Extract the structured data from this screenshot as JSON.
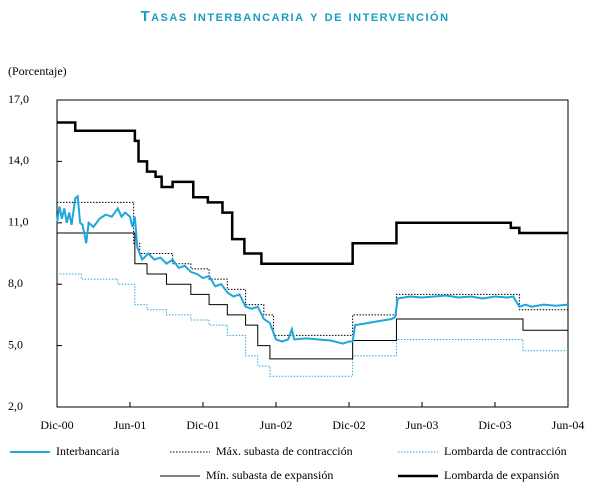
{
  "chart_data": {
    "type": "line",
    "title": "Tasas interbancaria y de intervención",
    "subtitle": "(Porcentaje)",
    "xlim": [
      0,
      42
    ],
    "xticks": [
      {
        "value": 0,
        "label": "Dic-00"
      },
      {
        "value": 6,
        "label": "Jun-01"
      },
      {
        "value": 12,
        "label": "Dic-01"
      },
      {
        "value": 18,
        "label": "Jun-02"
      },
      {
        "value": 24,
        "label": "Dic-02"
      },
      {
        "value": 30,
        "label": "Jun-03"
      },
      {
        "value": 36,
        "label": "Dic-03"
      },
      {
        "value": 42,
        "label": "Jun-04"
      }
    ],
    "ylim": [
      2,
      17
    ],
    "yticks": [
      {
        "value": 2,
        "label": "2,0"
      },
      {
        "value": 5,
        "label": "5,0"
      },
      {
        "value": 8,
        "label": "8,0"
      },
      {
        "value": 11,
        "label": "11,0"
      },
      {
        "value": 14,
        "label": "14,0"
      },
      {
        "value": 17,
        "label": "17,0"
      }
    ],
    "series": [
      {
        "name": "Lombarda de contracción",
        "color": "#29a9e0",
        "line_style": "dotted",
        "line_width": 1,
        "x": [
          0,
          2,
          2,
          5,
          5,
          6.4,
          6.4,
          7.4,
          7.4,
          9,
          9,
          11,
          11,
          12.5,
          12.5,
          14,
          14,
          15.5,
          15.5,
          16.5,
          16.5,
          17.5,
          17.5,
          24.3,
          24.3,
          27.9,
          27.9,
          38.3,
          38.3,
          42
        ],
        "values": [
          8.5,
          8.5,
          8.25,
          8.25,
          8.0,
          8.0,
          7.0,
          7.0,
          6.75,
          6.75,
          6.5,
          6.5,
          6.25,
          6.25,
          6.0,
          6.0,
          5.5,
          5.5,
          4.5,
          4.5,
          4.0,
          4.0,
          3.5,
          3.5,
          4.5,
          4.5,
          5.3,
          5.3,
          4.75,
          4.75
        ]
      },
      {
        "name": "Mín. subasta de expansión",
        "color": "#000000",
        "line_style": "solid",
        "line_width": 1,
        "x": [
          0,
          6.4,
          6.4,
          7.4,
          7.4,
          9,
          9,
          11,
          11,
          12.5,
          12.5,
          14,
          14,
          15.5,
          15.5,
          16.5,
          16.5,
          17.5,
          17.5,
          24.3,
          24.3,
          27.9,
          27.9,
          38.3,
          38.3,
          42
        ],
        "values": [
          10.5,
          10.5,
          9.0,
          9.0,
          8.5,
          8.5,
          8.0,
          8.0,
          7.5,
          7.5,
          7.0,
          7.0,
          6.5,
          6.5,
          6.0,
          6.0,
          5.0,
          5.0,
          4.35,
          4.35,
          5.25,
          5.25,
          6.3,
          6.3,
          5.75,
          5.75
        ]
      },
      {
        "name": "Máx. subasta de contracción",
        "color": "#000000",
        "line_style": "dotted",
        "line_width": 1,
        "x": [
          0,
          6.3,
          6.3,
          6.8,
          6.8,
          9.5,
          9.5,
          11,
          11,
          12.5,
          12.5,
          14,
          14,
          15.5,
          15.5,
          17,
          17,
          17.8,
          17.8,
          24.3,
          24.3,
          27.9,
          27.9,
          38,
          38,
          42
        ],
        "values": [
          12.0,
          12.0,
          10.0,
          10.0,
          9.5,
          9.5,
          9.0,
          9.0,
          8.75,
          8.75,
          8.25,
          8.25,
          7.75,
          7.75,
          7.0,
          7.0,
          6.5,
          6.5,
          5.5,
          5.5,
          6.5,
          6.5,
          7.5,
          7.5,
          6.75,
          6.75
        ]
      },
      {
        "name": "Lombarda de expansión",
        "color": "#000000",
        "line_style": "solid",
        "line_width": 2.5,
        "x": [
          0,
          1.5,
          1.5,
          6.4,
          6.4,
          6.7,
          6.7,
          7.4,
          7.4,
          8.1,
          8.1,
          8.6,
          8.6,
          9.5,
          9.5,
          11.2,
          11.2,
          12.4,
          12.4,
          13.6,
          13.6,
          14.4,
          14.4,
          15.4,
          15.4,
          16.8,
          16.8,
          24.3,
          24.3,
          27.9,
          27.9,
          37.3,
          37.3,
          38,
          38,
          42
        ],
        "values": [
          15.9,
          15.9,
          15.5,
          15.5,
          15.0,
          15.0,
          14.0,
          14.0,
          13.5,
          13.5,
          13.25,
          13.25,
          12.75,
          12.75,
          13.0,
          13.0,
          12.25,
          12.25,
          12.0,
          12.0,
          11.5,
          11.5,
          10.2,
          10.2,
          9.5,
          9.5,
          9.0,
          9.0,
          10.0,
          10.0,
          11.0,
          11.0,
          10.75,
          10.75,
          10.5,
          10.5
        ]
      },
      {
        "name": "Interbancaria",
        "color": "#1ea7dc",
        "line_style": "solid",
        "line_width": 2,
        "x": [
          0,
          0.2,
          0.4,
          0.6,
          0.8,
          1.0,
          1.2,
          1.5,
          1.7,
          1.9,
          2.1,
          2.4,
          2.6,
          3.0,
          3.5,
          4.0,
          4.5,
          5.0,
          5.3,
          5.6,
          6.0,
          6.2,
          6.4,
          6.6,
          6.8,
          7.0,
          7.5,
          8.0,
          8.5,
          9.0,
          9.5,
          10.0,
          10.5,
          11.0,
          11.5,
          12.0,
          12.5,
          13.0,
          13.5,
          14.0,
          14.5,
          15.0,
          15.5,
          16.0,
          16.5,
          17.0,
          17.5,
          18.0,
          18.5,
          19.0,
          19.3,
          19.5,
          20.5,
          21.5,
          22.5,
          23.5,
          24.0,
          24.3,
          24.5,
          25.5,
          26.5,
          27.5,
          27.8,
          28.0,
          29,
          30,
          31,
          32,
          33,
          34,
          35,
          36,
          37,
          37.5,
          38.0,
          38.5,
          39,
          40,
          41,
          42
        ],
        "values": [
          11.0,
          11.8,
          11.2,
          11.7,
          11.0,
          11.5,
          10.9,
          12.2,
          12.3,
          11.0,
          10.9,
          10.0,
          11.0,
          10.8,
          11.2,
          11.4,
          11.3,
          11.7,
          11.3,
          11.5,
          11.3,
          10.8,
          11.3,
          9.8,
          9.5,
          9.2,
          9.5,
          9.2,
          9.3,
          9.0,
          9.2,
          8.8,
          8.9,
          8.6,
          8.5,
          8.3,
          8.4,
          7.9,
          8.0,
          7.6,
          7.4,
          7.5,
          6.9,
          6.8,
          6.9,
          6.3,
          6.1,
          5.3,
          5.2,
          5.3,
          5.8,
          5.3,
          5.35,
          5.3,
          5.25,
          5.1,
          5.2,
          5.2,
          6.0,
          6.1,
          6.2,
          6.3,
          6.4,
          7.3,
          7.4,
          7.35,
          7.4,
          7.45,
          7.35,
          7.4,
          7.3,
          7.4,
          7.35,
          7.4,
          6.9,
          7.0,
          6.9,
          7.0,
          6.95,
          7.0
        ]
      }
    ],
    "legend_order": [
      4,
      2,
      0,
      1,
      3
    ]
  }
}
